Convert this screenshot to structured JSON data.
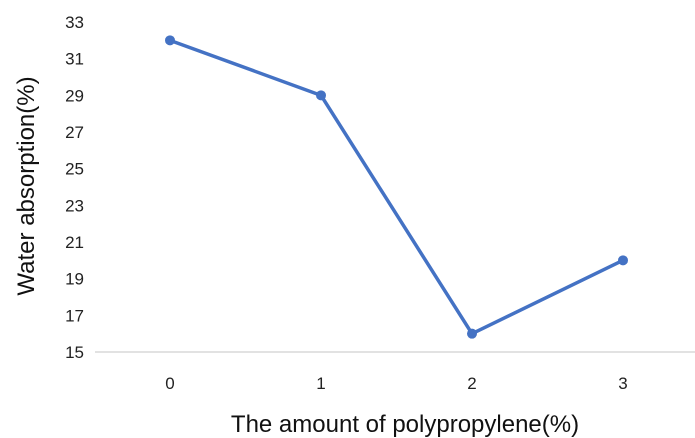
{
  "chart_data": {
    "type": "line",
    "title": "",
    "xlabel": "The amount of polypropylene(%)",
    "ylabel": "Water absorption(%)",
    "categories": [
      "0",
      "1",
      "2",
      "3"
    ],
    "series": [
      {
        "values": [
          32,
          29,
          16,
          20
        ],
        "color": "#4472C4"
      }
    ],
    "ylim": [
      15,
      33
    ],
    "yticks": [
      15,
      17,
      19,
      21,
      23,
      25,
      27,
      29,
      31,
      33
    ],
    "grid": false,
    "legend": "none",
    "axis_color": "#d9d9d9"
  }
}
